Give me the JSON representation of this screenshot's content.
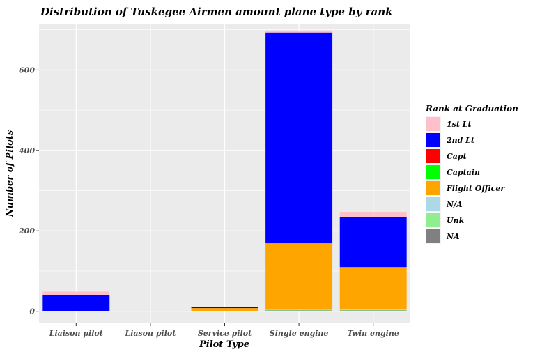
{
  "chart_data": {
    "type": "bar",
    "stacked": true,
    "title": "Distribution of Tuskegee Airmen amount plane type by rank",
    "xlabel": "Pilot Type",
    "ylabel": "Number of Pilots",
    "categories": [
      "Liaison pilot",
      "Liason pilot",
      "Service pilot",
      "Single engine",
      "Twin engine"
    ],
    "ylim": [
      -30,
      715
    ],
    "yticks": [
      0,
      200,
      400,
      600
    ],
    "grid": true,
    "legend": {
      "title": "Rank at Graduation",
      "position": "right"
    },
    "series": [
      {
        "name": "NA",
        "color": "#808080",
        "values": [
          0,
          0,
          0,
          2,
          2
        ]
      },
      {
        "name": "Unk",
        "color": "#90ee90",
        "values": [
          0,
          0,
          0,
          1,
          1
        ]
      },
      {
        "name": "N/A",
        "color": "#add8e6",
        "values": [
          0,
          0,
          0,
          1,
          2
        ]
      },
      {
        "name": "Flight Officer",
        "color": "#ffa500",
        "values": [
          0,
          0,
          8,
          165,
          105
        ]
      },
      {
        "name": "Captain",
        "color": "#00ff00",
        "values": [
          0,
          0,
          0,
          0,
          0
        ]
      },
      {
        "name": "Capt",
        "color": "#ff0000",
        "values": [
          0,
          0,
          0,
          2,
          0
        ]
      },
      {
        "name": "2nd Lt",
        "color": "#0000ff",
        "values": [
          40,
          0,
          3,
          522,
          125
        ]
      },
      {
        "name": "1st Lt",
        "color": "#ffc0cb",
        "values": [
          9,
          0,
          0,
          5,
          12
        ]
      }
    ]
  }
}
